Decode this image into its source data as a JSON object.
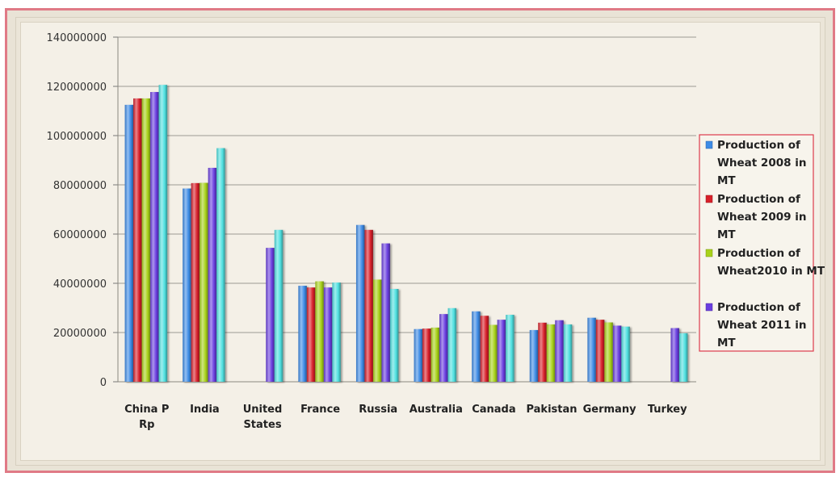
{
  "chart_data": {
    "type": "bar",
    "title": "",
    "xlabel": "",
    "ylabel": "",
    "ylim": [
      0,
      140000000
    ],
    "yticks": [
      "0",
      "20000000",
      "40000000",
      "60000000",
      "80000000",
      "100000000",
      "120000000",
      "140000000"
    ],
    "grid": true,
    "legend_position": "right",
    "categories": [
      "China P Rp",
      "India",
      "United States",
      "France",
      "Russia",
      "Australia",
      "Canada",
      "Pakistan",
      "Germany",
      "Turkey"
    ],
    "series": [
      {
        "name": "Production of Wheat 2008 in MT",
        "color": "#3d8be6",
        "values": [
          112500000,
          78500000,
          null,
          39000000,
          63700000,
          21400000,
          28600000,
          21000000,
          26000000,
          null
        ]
      },
      {
        "name": "Production of Wheat 2009 in MT",
        "color": "#d8202a",
        "values": [
          115100000,
          80700000,
          null,
          38300000,
          61700000,
          21600000,
          26800000,
          24000000,
          25200000,
          null
        ]
      },
      {
        "name": "Production of Wheat2010 in MT",
        "color": "#a8d21a",
        "values": [
          115100000,
          80800000,
          null,
          40800000,
          41500000,
          22000000,
          23100000,
          23300000,
          24100000,
          null
        ]
      },
      {
        "name": "Production of Wheat 2011 in MT",
        "color": "#6a3ee0",
        "values": [
          117700000,
          86900000,
          54400000,
          38300000,
          56200000,
          27500000,
          25200000,
          25000000,
          22800000,
          21800000
        ]
      },
      {
        "name": "",
        "color": "#4fe0e0",
        "values": [
          120600000,
          94900000,
          61700000,
          40300000,
          37700000,
          29900000,
          27200000,
          23300000,
          22400000,
          19700000
        ]
      }
    ]
  }
}
